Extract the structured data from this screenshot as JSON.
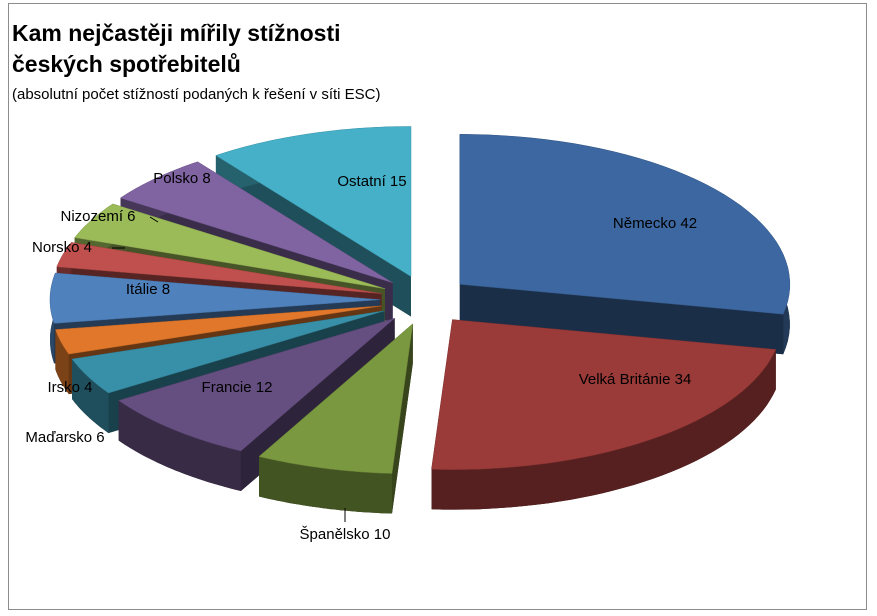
{
  "chart_data": {
    "type": "pie3d",
    "title": "Kam nejčastěji mířily stížnosti českých spotřebitelů",
    "subtitle": "(absolutní počet stížností podaných k řešení v síti ESC)",
    "categories": [
      "Německo",
      "Velká Británie",
      "Španělsko",
      "Francie",
      "Maďarsko",
      "Irsko",
      "Itálie",
      "Norsko",
      "Nizozemí",
      "Polsko",
      "Ostatní"
    ],
    "values": [
      42,
      34,
      10,
      12,
      6,
      4,
      8,
      4,
      6,
      8,
      15
    ],
    "colors": [
      "#3d67a0",
      "#9a3b39",
      "#7a983f",
      "#654e80",
      "#3890a8",
      "#e0772a",
      "#4f81bd",
      "#c0504d",
      "#9bbb59",
      "#8064a2",
      "#45b0c8"
    ]
  }
}
